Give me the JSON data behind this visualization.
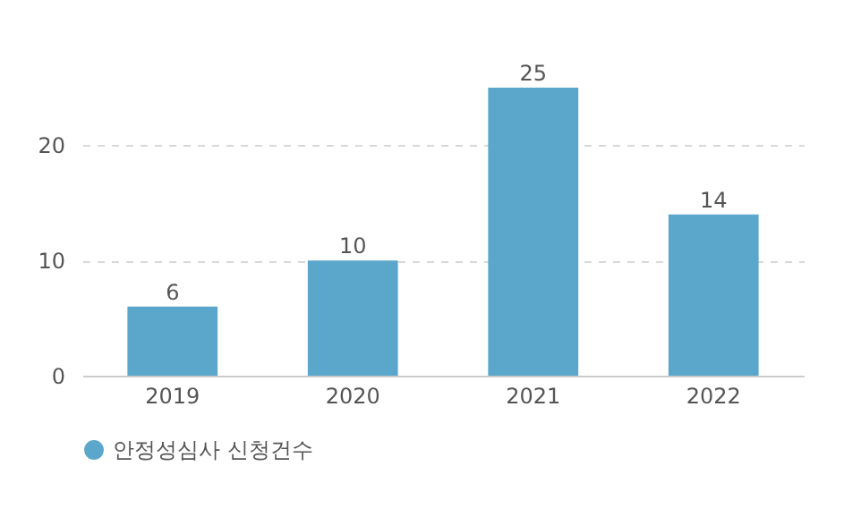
{
  "chart_data": {
    "type": "bar",
    "categories": [
      "2019",
      "2020",
      "2021",
      "2022"
    ],
    "series": [
      {
        "name": "안정성심사 신청건수",
        "color": "#5ba7cc",
        "values": [
          6,
          10,
          25,
          14
        ]
      }
    ],
    "ylim": [
      0,
      25
    ],
    "yticks": [
      0,
      10,
      20
    ],
    "grid": "y",
    "legend": "bottom",
    "data_labels": true
  }
}
